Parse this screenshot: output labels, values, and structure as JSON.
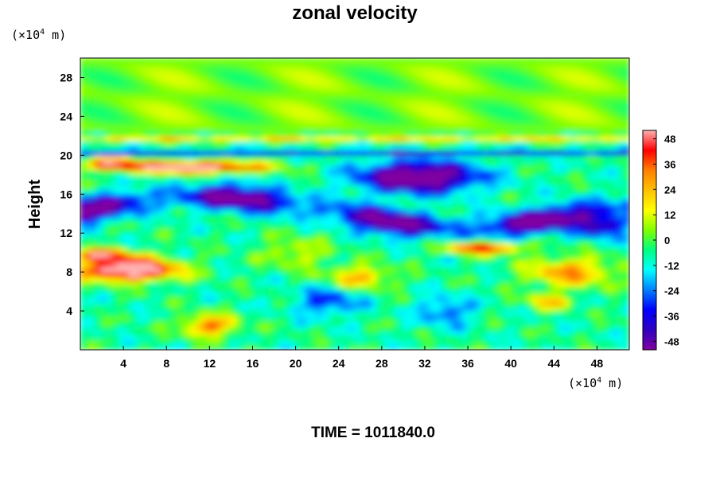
{
  "chart_data": {
    "type": "heatmap",
    "title": "zonal velocity",
    "ylabel": "Height",
    "xlabel": "",
    "x_unit": {
      "prefix": "(×10",
      "exp": "4",
      "suffix": " m)"
    },
    "y_unit": {
      "prefix": "(×10",
      "exp": "4",
      "suffix": " m)"
    },
    "xlim": [
      0,
      51
    ],
    "ylim": [
      0,
      30
    ],
    "x_ticks": [
      4,
      8,
      12,
      16,
      20,
      24,
      28,
      32,
      36,
      40,
      44,
      48
    ],
    "y_ticks": [
      4,
      8,
      12,
      16,
      20,
      24,
      28
    ],
    "colorbar": {
      "range": [
        -52,
        52
      ],
      "ticks": [
        48,
        36,
        24,
        12,
        0,
        -12,
        -24,
        -36,
        -48
      ],
      "colors_low_to_high": [
        "#8000a0",
        "#3000c0",
        "#0000ff",
        "#0080ff",
        "#00ffff",
        "#00ff80",
        "#80ff00",
        "#ffff00",
        "#ffc000",
        "#ff8000",
        "#ff0000",
        "#ffb0b0"
      ]
    },
    "features": [
      {
        "kind": "westward jet",
        "x": [
          0,
          51
        ],
        "y": [
          12,
          16
        ],
        "value": -48
      },
      {
        "kind": "eastward maximum",
        "x": [
          3,
          18
        ],
        "y": [
          18,
          19.5
        ],
        "value": 48
      },
      {
        "kind": "eastward maximum",
        "x": [
          0,
          10
        ],
        "y": [
          7,
          10.5
        ],
        "value": 48
      },
      {
        "kind": "eastward maximum",
        "x": [
          35,
          41
        ],
        "y": [
          10,
          11
        ],
        "value": 40
      },
      {
        "kind": "westward core",
        "x": [
          25,
          38
        ],
        "y": [
          16,
          20
        ],
        "value": -48
      },
      {
        "kind": "shear line",
        "x": [
          0,
          51
        ],
        "y": [
          20.3,
          20.5
        ],
        "value": -40
      },
      {
        "kind": "eastward band",
        "x": [
          0,
          51
        ],
        "y": [
          21.4,
          22.2
        ],
        "value": 20
      }
    ]
  },
  "footer": "TIME = 1011840.0"
}
